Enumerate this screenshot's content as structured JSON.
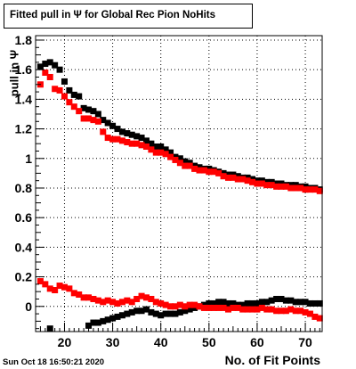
{
  "title": "Fitted pull in  Ψ  for Global Rec Pion NoHits",
  "timestamp": "Sun Oct 18 16:50:21 2020",
  "colors": {
    "series_black": "#000000",
    "series_red": "#ff0000",
    "grid": "#000000"
  },
  "chart_data": {
    "type": "scatter",
    "title": "Fitted pull in  Ψ  for Global Rec Pion NoHits",
    "xlabel": "No. of Fit Points",
    "ylabel": "pull in  Ψ",
    "xlim": [
      14,
      73.5
    ],
    "ylim": [
      -0.17,
      1.83
    ],
    "xticks": [
      20,
      30,
      40,
      50,
      60,
      70
    ],
    "yticks": [
      0,
      0.2,
      0.4,
      0.6,
      0.8,
      1,
      1.2,
      1.4,
      1.6,
      1.8
    ],
    "ytick_labels": [
      "0",
      "0.2",
      "0.4",
      "0.6",
      "0.8",
      "1",
      "1.2",
      "1.4",
      "1.6",
      "1.8"
    ],
    "grid": true,
    "legend": "none",
    "series": [
      {
        "color": "#000000",
        "x": [
          15,
          16,
          17,
          18,
          19,
          20,
          21,
          22,
          23,
          24,
          25,
          26,
          27,
          28,
          29,
          30,
          31,
          32,
          33,
          34,
          35,
          36,
          37,
          38,
          39,
          40,
          41,
          42,
          43,
          44,
          45,
          46,
          47,
          48,
          49,
          50,
          51,
          52,
          53,
          54,
          55,
          56,
          57,
          58,
          59,
          60,
          61,
          62,
          63,
          64,
          65,
          66,
          67,
          68,
          69,
          70,
          71,
          72,
          73
        ],
        "y": [
          1.62,
          1.64,
          1.65,
          1.63,
          1.6,
          1.52,
          1.46,
          1.43,
          1.42,
          1.34,
          1.33,
          1.32,
          1.3,
          1.26,
          1.24,
          1.22,
          1.2,
          1.18,
          1.17,
          1.16,
          1.15,
          1.14,
          1.12,
          1.1,
          1.08,
          1.08,
          1.06,
          1.04,
          1.01,
          1.0,
          0.98,
          0.97,
          0.95,
          0.94,
          0.93,
          0.93,
          0.92,
          0.91,
          0.9,
          0.89,
          0.89,
          0.88,
          0.87,
          0.87,
          0.86,
          0.85,
          0.85,
          0.84,
          0.84,
          0.83,
          0.83,
          0.82,
          0.82,
          0.82,
          0.81,
          0.81,
          0.8,
          0.8,
          0.79
        ]
      },
      {
        "color": "#ff0000",
        "x": [
          15,
          16,
          17,
          18,
          19,
          20,
          21,
          22,
          23,
          24,
          25,
          26,
          27,
          28,
          29,
          30,
          31,
          32,
          33,
          34,
          35,
          36,
          37,
          38,
          39,
          40,
          41,
          42,
          43,
          44,
          45,
          46,
          47,
          48,
          49,
          50,
          51,
          52,
          53,
          54,
          55,
          56,
          57,
          58,
          59,
          60,
          61,
          62,
          63,
          64,
          65,
          66,
          67,
          68,
          69,
          70,
          71,
          72,
          73
        ],
        "y": [
          1.5,
          1.58,
          1.55,
          1.47,
          1.46,
          1.42,
          1.38,
          1.35,
          1.32,
          1.27,
          1.27,
          1.26,
          1.25,
          1.18,
          1.14,
          1.13,
          1.13,
          1.12,
          1.11,
          1.1,
          1.1,
          1.09,
          1.08,
          1.06,
          1.04,
          1.04,
          1.03,
          1.01,
          0.99,
          0.97,
          0.95,
          0.95,
          0.93,
          0.92,
          0.92,
          0.91,
          0.91,
          0.9,
          0.88,
          0.87,
          0.87,
          0.86,
          0.86,
          0.85,
          0.84,
          0.83,
          0.83,
          0.82,
          0.82,
          0.81,
          0.81,
          0.81,
          0.8,
          0.8,
          0.8,
          0.79,
          0.79,
          0.79,
          0.78
        ]
      },
      {
        "color": "#000000",
        "x": [
          17,
          25,
          26,
          27,
          28,
          29,
          30,
          31,
          32,
          33,
          34,
          35,
          36,
          37,
          38,
          39,
          40,
          41,
          42,
          43,
          44,
          45,
          46,
          47,
          48,
          49,
          50,
          51,
          52,
          53,
          54,
          55,
          56,
          57,
          58,
          59,
          60,
          61,
          62,
          63,
          64,
          65,
          66,
          67,
          68,
          69,
          70,
          71,
          72,
          73
        ],
        "y": [
          -0.15,
          -0.13,
          -0.11,
          -0.11,
          -0.1,
          -0.09,
          -0.08,
          -0.07,
          -0.06,
          -0.05,
          -0.04,
          -0.03,
          -0.03,
          -0.02,
          -0.04,
          -0.05,
          -0.06,
          -0.05,
          -0.05,
          -0.05,
          -0.04,
          -0.03,
          -0.02,
          -0.01,
          0.0,
          0.01,
          0.02,
          0.02,
          0.03,
          0.03,
          0.02,
          0.02,
          0.01,
          0.01,
          0.02,
          0.02,
          0.02,
          0.03,
          0.03,
          0.04,
          0.05,
          0.05,
          0.04,
          0.04,
          0.03,
          0.03,
          0.03,
          0.02,
          0.02,
          0.02
        ]
      },
      {
        "color": "#ff0000",
        "x": [
          15,
          16,
          17,
          18,
          19,
          20,
          21,
          22,
          23,
          24,
          25,
          26,
          27,
          28,
          29,
          30,
          31,
          32,
          33,
          34,
          35,
          36,
          37,
          38,
          39,
          40,
          41,
          42,
          43,
          44,
          45,
          46,
          47,
          48,
          49,
          50,
          51,
          52,
          53,
          54,
          55,
          56,
          57,
          58,
          59,
          60,
          61,
          62,
          63,
          64,
          65,
          66,
          67,
          68,
          69,
          70,
          71,
          72,
          73
        ],
        "y": [
          0.17,
          0.15,
          0.12,
          0.11,
          0.14,
          0.13,
          0.12,
          0.09,
          0.08,
          0.06,
          0.06,
          0.05,
          0.04,
          0.03,
          0.04,
          0.03,
          0.02,
          0.03,
          0.04,
          0.03,
          0.05,
          0.07,
          0.06,
          0.05,
          0.03,
          0.02,
          0.01,
          0.0,
          0.0,
          0.01,
          0.0,
          0.01,
          0.01,
          0.0,
          -0.01,
          -0.01,
          -0.01,
          -0.01,
          -0.01,
          -0.02,
          -0.01,
          -0.01,
          -0.02,
          -0.02,
          -0.02,
          -0.02,
          -0.01,
          -0.02,
          -0.02,
          -0.03,
          -0.03,
          -0.03,
          -0.02,
          -0.03,
          -0.03,
          -0.04,
          -0.05,
          -0.07,
          -0.08
        ]
      }
    ]
  }
}
